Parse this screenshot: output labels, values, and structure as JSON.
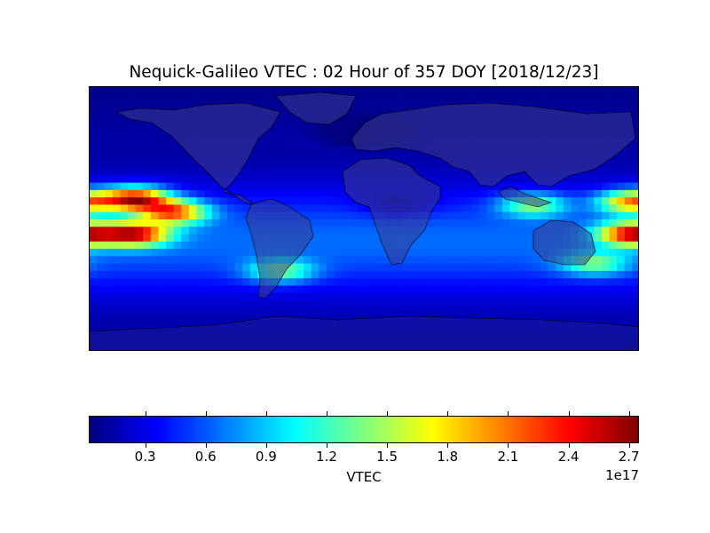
{
  "chart_data": {
    "type": "heatmap",
    "title": "Nequick-Galileo VTEC : 02 Hour of 357 DOY [2018/12/23]",
    "colorbar": {
      "label": "VTEC",
      "offset_text": "1e17",
      "ticks": [
        "0.3",
        "0.6",
        "0.9",
        "1.2",
        "1.5",
        "1.8",
        "2.1",
        "2.4",
        "2.7"
      ],
      "tick_values": [
        0.3,
        0.6,
        0.9,
        1.2,
        1.5,
        1.8,
        2.1,
        2.4,
        2.7
      ],
      "range": [
        0.02,
        2.75
      ],
      "colormap": "jet"
    },
    "map": {
      "projection": "cylindrical",
      "lon_range": [
        -180,
        180
      ],
      "lat_range": [
        -90,
        90
      ],
      "coastlines": true,
      "features": [
        {
          "lon": -150,
          "lat": 14,
          "value": 2.7
        },
        {
          "lon": -150,
          "lat": -10,
          "value": 2.55
        },
        {
          "lon": -125,
          "lat": 5,
          "value": 2.3
        },
        {
          "lon": 175,
          "lat": -10,
          "value": 2.55
        },
        {
          "lon": 175,
          "lat": 12,
          "value": 2.2
        },
        {
          "lon": 110,
          "lat": 10,
          "value": 1.6
        },
        {
          "lon": -55,
          "lat": -35,
          "value": 1.5
        },
        {
          "lon": 150,
          "lat": -30,
          "value": 1.45
        },
        {
          "lon": 20,
          "lat": 10,
          "value": 0.35
        },
        {
          "lon": 0,
          "lat": 60,
          "value": 0.15
        }
      ]
    }
  }
}
